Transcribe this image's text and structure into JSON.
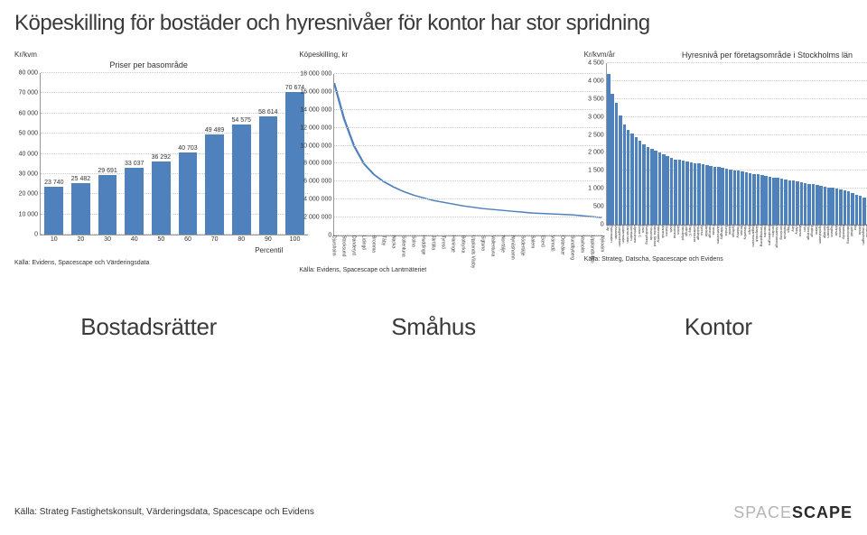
{
  "page_title": "Köpeskilling för bostäder och hyresnivåer för kontor har stor spridning",
  "footer_source": "Källa: Strateg Fastighetskonsult, Värderingsdata, Spacescape och Evidens",
  "brand_gray": "SPACE",
  "brand_dark": "SCAPE",
  "big_labels": [
    "Bostadsrätter",
    "Småhus",
    "Kontor"
  ],
  "chart1": {
    "type": "bar",
    "ylabel": "Kr/kvm",
    "title": "Priser per basområde",
    "ylim": [
      0,
      80000
    ],
    "ytick_step": 10000,
    "yticks_labels": [
      "0",
      "10 000",
      "20 000",
      "30 000",
      "40 000",
      "50 000",
      "60 000",
      "70 000",
      "80 000"
    ],
    "xticks": [
      10,
      20,
      30,
      40,
      50,
      60,
      70,
      80,
      90,
      100
    ],
    "xaxis_title": "Percentil",
    "categories": [
      10,
      20,
      30,
      40,
      50,
      60,
      70,
      80,
      90,
      100
    ],
    "values": [
      23740,
      25482,
      29691,
      33037,
      36292,
      40703,
      49489,
      54575,
      58614,
      70674
    ],
    "value_labels": [
      "23 740",
      "25 482",
      "29 691",
      "33 037",
      "36 292",
      "40 703",
      "49 489",
      "54 575",
      "58 614",
      "70 674"
    ],
    "bar_color": "#4f81bd",
    "grid_color": "#cccccc",
    "source": "Källa: Evidens, Spacescape och Värderingsdata"
  },
  "chart2": {
    "type": "line",
    "ylabel": "Köpeskilling, kr",
    "ylim": [
      0,
      18000000
    ],
    "ytick_step": 2000000,
    "yticks_labels": [
      "0",
      "2 000 000",
      "4 000 000",
      "6 000 000",
      "8 000 000",
      "10 000 000",
      "12 000 000",
      "14 000 000",
      "16 000 000",
      "18 000 000"
    ],
    "line_color": "#4f81bd",
    "grid_color": "#cccccc",
    "x_categories": [
      "Djursholm",
      "Stocksund",
      "Danderyd",
      "Lidingö",
      "Bromma",
      "Täby",
      "Nacka",
      "Sollentuna",
      "Solna",
      "Huddinge",
      "Järfälla",
      "Tyresö",
      "Haninge",
      "Botkyrka",
      "Upplands Väsby",
      "Sigtuna",
      "Vallentuna",
      "Norrtälje",
      "Nynäshamn",
      "Södertälje",
      "Salem",
      "Ekerö",
      "Värmdö",
      "Österåker",
      "Sundbyberg",
      "Vaxholm",
      "Upplands-Bro",
      "Nykvarn"
    ],
    "points_y": [
      17000000,
      13000000,
      10000000,
      8000000,
      6800000,
      6000000,
      5400000,
      4900000,
      4500000,
      4200000,
      3900000,
      3700000,
      3500000,
      3300000,
      3150000,
      3000000,
      2900000,
      2800000,
      2700000,
      2600000,
      2500000,
      2450000,
      2400000,
      2350000,
      2300000,
      2200000,
      2100000,
      2000000
    ],
    "source": "Källa: Evidens, Spacescape och Lantmäteriet"
  },
  "chart3": {
    "type": "bar",
    "ylabel": "Kr/kvm/år",
    "title": "Hyresnivå per företagsområde i Stockholms län",
    "ylim": [
      0,
      4500
    ],
    "ytick_step": 500,
    "yticks_labels": [
      "0",
      "500",
      "1 000",
      "1 500",
      "2 000",
      "2 500",
      "3 000",
      "3 500",
      "4 000",
      "4 500"
    ],
    "bar_color": "#4f81bd",
    "grid_color": "#cccccc",
    "values": [
      4200,
      3650,
      3400,
      3050,
      2800,
      2650,
      2550,
      2450,
      2350,
      2250,
      2150,
      2100,
      2050,
      2000,
      1950,
      1900,
      1850,
      1820,
      1800,
      1780,
      1760,
      1740,
      1720,
      1700,
      1680,
      1660,
      1640,
      1620,
      1600,
      1580,
      1560,
      1540,
      1520,
      1500,
      1480,
      1460,
      1440,
      1420,
      1400,
      1380,
      1360,
      1340,
      1320,
      1300,
      1280,
      1260,
      1240,
      1220,
      1200,
      1180,
      1160,
      1140,
      1120,
      1100,
      1080,
      1060,
      1040,
      1020,
      1000,
      980,
      950,
      920,
      880,
      840,
      800,
      750,
      700,
      650
    ],
    "x_categories": [
      "City",
      "Östermalm",
      "Vasastan",
      "Kungsholmen",
      "Södermalm",
      "Gamla stan",
      "Norrmalm",
      "Liljeholmen",
      "Solna C",
      "Kista",
      "Sundbyberg",
      "Frösunda",
      "Nacka Strand",
      "Hammarby",
      "Marievik",
      "Globen",
      "Alvik",
      "Bromma",
      "Sickla",
      "Danderyd",
      "Lidingö",
      "Täby C",
      "Sollentuna",
      "Huddinge",
      "Tyresö",
      "Järfälla",
      "Haninge",
      "Farsta",
      "Skärholmen",
      "Vällingby",
      "Tumba",
      "Akalla",
      "Spånga",
      "Rinkeby",
      "Tensta",
      "Hässelby",
      "Älvsjö",
      "Bagarmossen",
      "Skarpnäck",
      "Flemingsberg",
      "Handen",
      "Brandbergen",
      "Jordbro",
      "Västerhaninge",
      "Norsborg",
      "Hallunda",
      "Fittja",
      "Alby",
      "Vårby",
      "Masmo",
      "Flen",
      "Rönninge",
      "Tullinge",
      "Salem",
      "Nynäshamn",
      "Norrtälje",
      "Nykvarn",
      "Sigtuna",
      "Märsta",
      "Rotebro",
      "Barkarby",
      "Jakobsberg",
      "Kallhäll",
      "Bro",
      "Bålsta",
      "Kungsängen",
      "Arlanda",
      "Rosersberg"
    ],
    "source": "Källa: Strateg, Datscha, Spacescape och Evidens"
  }
}
